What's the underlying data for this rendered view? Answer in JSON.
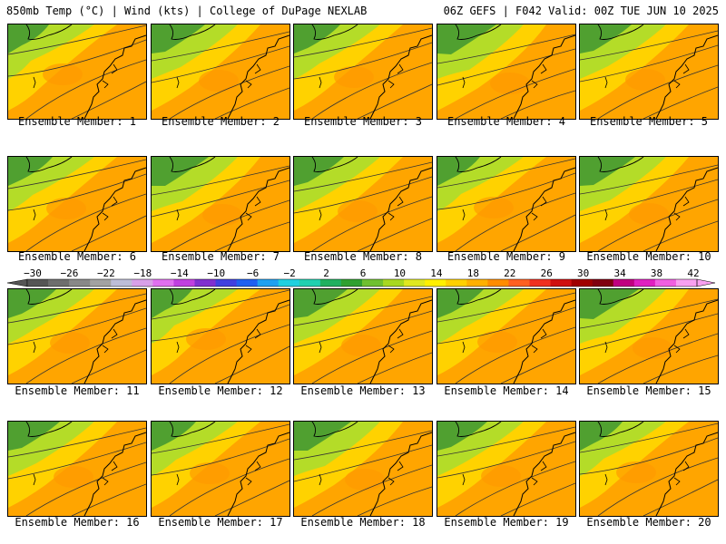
{
  "header": {
    "left": "850mb Temp (°C) | Wind (kts) | College of DuPage NEXLAB",
    "right": "06Z GEFS | F042 Valid: 00Z TUE JUN 10 2025"
  },
  "panels": [
    {
      "caption": "Ensemble Member: 1"
    },
    {
      "caption": "Ensemble Member: 2"
    },
    {
      "caption": "Ensemble Member: 3"
    },
    {
      "caption": "Ensemble Member: 4"
    },
    {
      "caption": "Ensemble Member: 5"
    },
    {
      "caption": "Ensemble Member: 6"
    },
    {
      "caption": "Ensemble Member: 7"
    },
    {
      "caption": "Ensemble Member: 8"
    },
    {
      "caption": "Ensemble Member: 9"
    },
    {
      "caption": "Ensemble Member: 10"
    },
    {
      "caption": "Ensemble Member: 11"
    },
    {
      "caption": "Ensemble Member: 12"
    },
    {
      "caption": "Ensemble Member: 13"
    },
    {
      "caption": "Ensemble Member: 14"
    },
    {
      "caption": "Ensemble Member: 15"
    },
    {
      "caption": "Ensemble Member: 16"
    },
    {
      "caption": "Ensemble Member: 17"
    },
    {
      "caption": "Ensemble Member: 18"
    },
    {
      "caption": "Ensemble Member: 19"
    },
    {
      "caption": "Ensemble Member: 20"
    }
  ],
  "colorbar": {
    "labels": [
      "−30",
      "−26",
      "−22",
      "−18",
      "−14",
      "−10",
      "−6",
      "−2",
      "2",
      "6",
      "10",
      "14",
      "18",
      "22",
      "26",
      "30",
      "34",
      "38",
      "42"
    ],
    "colors": [
      "#555555",
      "#6e6e6e",
      "#888888",
      "#a2a2a2",
      "#bdbdd8",
      "#d8a0e8",
      "#e070f0",
      "#c040e0",
      "#8030d0",
      "#4040e0",
      "#2060f0",
      "#20a0f0",
      "#20d0e0",
      "#20d0b0",
      "#20b060",
      "#30a030",
      "#70c030",
      "#a8d820",
      "#e0e820",
      "#fff000",
      "#ffd000",
      "#ffb000",
      "#ff8c00",
      "#ff6020",
      "#f03020",
      "#d01010",
      "#a00000",
      "#800010",
      "#c00080",
      "#e020c0",
      "#f060e0",
      "#f8a0f0"
    ]
  },
  "colors": {
    "warm": "#ffa500",
    "mid": "#ffd200",
    "cool": "#b4dc28",
    "cold": "#50a030"
  }
}
